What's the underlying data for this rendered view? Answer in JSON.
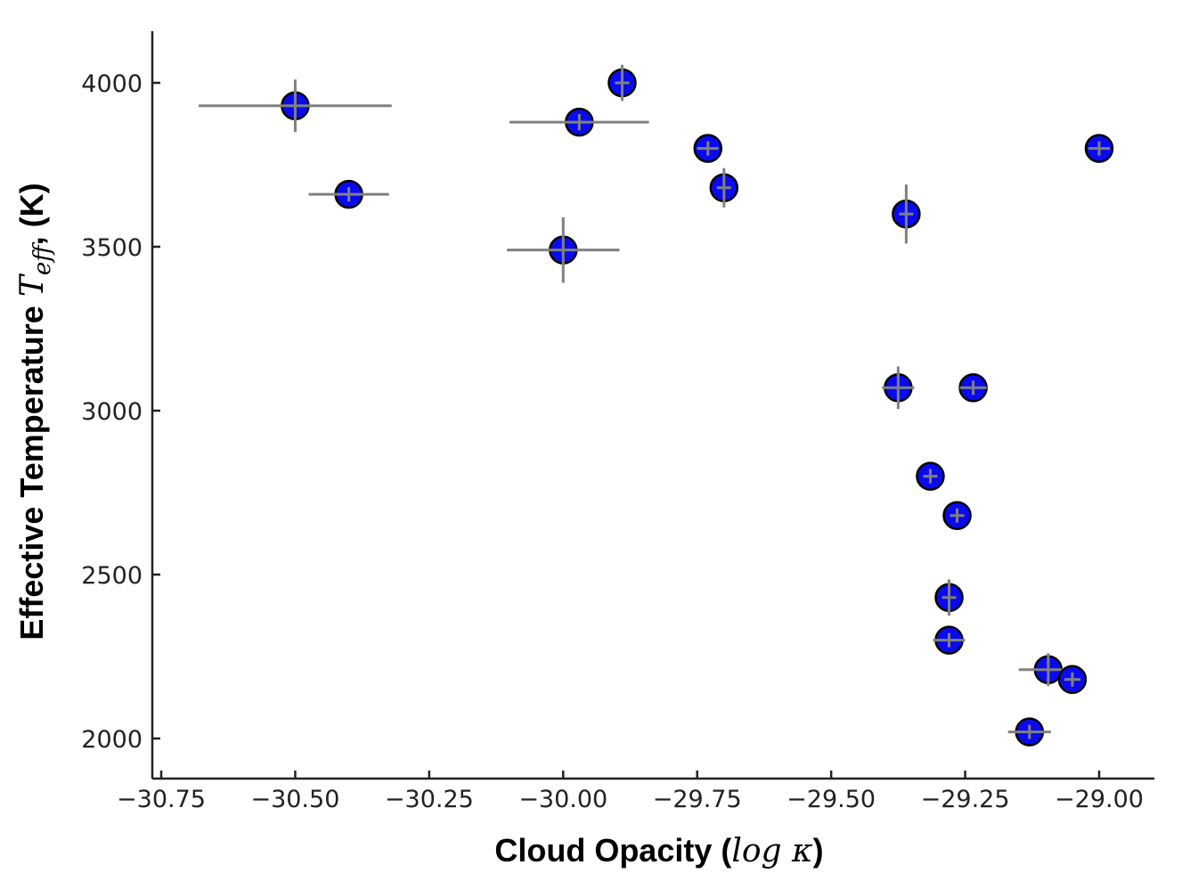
{
  "chart_data": {
    "type": "scatter",
    "title": "",
    "xlabel": {
      "text_before": "Cloud Opacity (",
      "math": "log κ",
      "text_after": ")"
    },
    "ylabel": {
      "text_before": "Effective Temperature ",
      "math": "T",
      "math_sub": "eff",
      "text_after": ", (K)"
    },
    "xlim": [
      -30.77,
      -28.9
    ],
    "ylim": [
      1880,
      4160
    ],
    "x_ticks": [
      -30.75,
      -30.5,
      -30.25,
      -30.0,
      -29.75,
      -29.5,
      -29.25,
      -29.0
    ],
    "x_tick_labels": [
      "−30.75",
      "−30.50",
      "−30.25",
      "−30.00",
      "−29.75",
      "−29.50",
      "−29.25",
      "−29.00"
    ],
    "y_ticks": [
      2000,
      2500,
      3000,
      3500,
      4000
    ],
    "y_tick_labels": [
      "2000",
      "2500",
      "3000",
      "3500",
      "4000"
    ],
    "grid": false,
    "marker_color": "#0a0aef",
    "marker_edge_color": "#000000",
    "errorbar_color": "#808080",
    "points": [
      {
        "x": -30.5,
        "y": 3930,
        "xerr": 0.18,
        "yerr": 80
      },
      {
        "x": -30.4,
        "y": 3660,
        "xerr": 0.075,
        "yerr": 20
      },
      {
        "x": -30.0,
        "y": 3490,
        "xerr": 0.105,
        "yerr": 100
      },
      {
        "x": -29.97,
        "y": 3880,
        "xerr": 0.13,
        "yerr": 25
      },
      {
        "x": -29.89,
        "y": 4000,
        "xerr": 0.01,
        "yerr": 55
      },
      {
        "x": -29.73,
        "y": 3800,
        "xerr": 0.02,
        "yerr": 20
      },
      {
        "x": -29.7,
        "y": 3680,
        "xerr": 0.01,
        "yerr": 60
      },
      {
        "x": -29.36,
        "y": 3600,
        "xerr": 0.005,
        "yerr": 90
      },
      {
        "x": -29.0,
        "y": 3800,
        "xerr": 0.02,
        "yerr": 15
      },
      {
        "x": -29.375,
        "y": 3070,
        "xerr": 0.03,
        "yerr": 65
      },
      {
        "x": -29.235,
        "y": 3070,
        "xerr": 0.025,
        "yerr": 15
      },
      {
        "x": -29.315,
        "y": 2800,
        "xerr": 0.01,
        "yerr": 20
      },
      {
        "x": -29.265,
        "y": 2680,
        "xerr": 0.01,
        "yerr": 20
      },
      {
        "x": -29.28,
        "y": 2430,
        "xerr": 0.01,
        "yerr": 55
      },
      {
        "x": -29.28,
        "y": 2300,
        "xerr": 0.03,
        "yerr": 20
      },
      {
        "x": -29.095,
        "y": 2210,
        "xerr": 0.055,
        "yerr": 50
      },
      {
        "x": -29.05,
        "y": 2180,
        "xerr": 0.015,
        "yerr": 15
      },
      {
        "x": -29.13,
        "y": 2020,
        "xerr": 0.04,
        "yerr": 15
      }
    ]
  }
}
